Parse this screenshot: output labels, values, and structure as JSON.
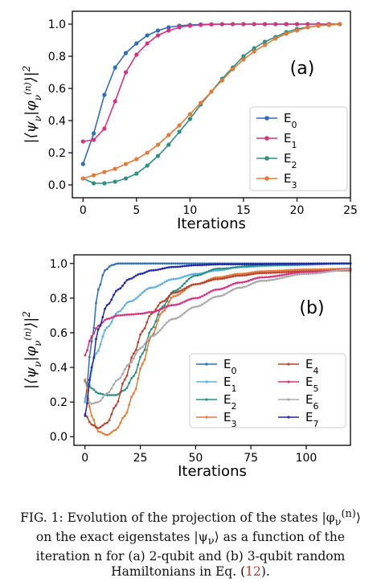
{
  "chart_data": [
    {
      "type": "line",
      "panel_label": "(a)",
      "xlabel": "Iterations",
      "ylabel": "|⟨ψ_ν|φ_ν^(n)⟩|²",
      "xlim": [
        -1,
        25
      ],
      "ylim": [
        -0.08,
        1.08
      ],
      "xticks": [
        0,
        5,
        10,
        15,
        20,
        25
      ],
      "yticks": [
        0.0,
        0.2,
        0.4,
        0.6,
        0.8,
        1.0
      ],
      "legend_position": "lower-right",
      "series": [
        {
          "name": "E0",
          "sub": "0",
          "color": "#2f6db5",
          "values": [
            0.13,
            0.32,
            0.56,
            0.73,
            0.82,
            0.88,
            0.93,
            0.96,
            0.98,
            0.99,
            0.995,
            0.998,
            0.999,
            1,
            1,
            1,
            1,
            1,
            1,
            1,
            1,
            1,
            1,
            1,
            1
          ]
        },
        {
          "name": "E1",
          "sub": "1",
          "color": "#d6337f",
          "values": [
            0.27,
            0.28,
            0.35,
            0.52,
            0.7,
            0.81,
            0.88,
            0.93,
            0.96,
            0.98,
            0.99,
            0.995,
            0.998,
            0.999,
            1,
            1,
            1,
            1,
            1,
            1,
            1,
            1,
            1,
            1,
            1
          ]
        },
        {
          "name": "E2",
          "sub": "2",
          "color": "#2e8f82",
          "values": [
            0.04,
            0.01,
            0.01,
            0.02,
            0.04,
            0.07,
            0.12,
            0.18,
            0.25,
            0.33,
            0.41,
            0.5,
            0.58,
            0.66,
            0.73,
            0.8,
            0.85,
            0.89,
            0.92,
            0.95,
            0.97,
            0.98,
            0.99,
            0.995,
            1.0
          ]
        },
        {
          "name": "E3",
          "sub": "3",
          "color": "#e07b39",
          "values": [
            0.04,
            0.06,
            0.08,
            0.1,
            0.13,
            0.16,
            0.2,
            0.25,
            0.31,
            0.37,
            0.44,
            0.51,
            0.58,
            0.65,
            0.72,
            0.78,
            0.83,
            0.87,
            0.91,
            0.94,
            0.96,
            0.98,
            0.99,
            0.995,
            1.0
          ]
        }
      ]
    },
    {
      "type": "line",
      "panel_label": "(b)",
      "xlabel": "Iterations",
      "ylabel": "|⟨ψ_ν|φ_ν^(n)⟩|²",
      "xlim": [
        -5,
        120
      ],
      "ylim": [
        -0.05,
        1.05
      ],
      "xticks": [
        0,
        25,
        50,
        75,
        100
      ],
      "yticks": [
        0.0,
        0.2,
        0.4,
        0.6,
        0.8,
        1.0
      ],
      "legend_position": "lower-right",
      "series": [
        {
          "name": "E0",
          "sub": "0",
          "color": "#2f6db5",
          "points": [
            [
              0,
              0.2
            ],
            [
              3,
              0.55
            ],
            [
              6,
              0.85
            ],
            [
              9,
              0.96
            ],
            [
              12,
              0.99
            ],
            [
              15,
              1.0
            ],
            [
              120,
              1.0
            ]
          ]
        },
        {
          "name": "E1",
          "sub": "1",
          "color": "#5fb0e0",
          "points": [
            [
              0,
              0.2
            ],
            [
              5,
              0.48
            ],
            [
              10,
              0.63
            ],
            [
              15,
              0.72
            ],
            [
              20,
              0.78
            ],
            [
              30,
              0.86
            ],
            [
              40,
              0.91
            ],
            [
              50,
              0.94
            ],
            [
              60,
              0.96
            ],
            [
              70,
              0.98
            ],
            [
              90,
              0.99
            ],
            [
              120,
              1.0
            ]
          ]
        },
        {
          "name": "E2",
          "sub": "2",
          "color": "#2e8f82",
          "points": [
            [
              0,
              0.32
            ],
            [
              3,
              0.28
            ],
            [
              6,
              0.25
            ],
            [
              10,
              0.24
            ],
            [
              14,
              0.24
            ],
            [
              18,
              0.27
            ],
            [
              22,
              0.35
            ],
            [
              26,
              0.48
            ],
            [
              30,
              0.62
            ],
            [
              35,
              0.75
            ],
            [
              40,
              0.84
            ],
            [
              50,
              0.93
            ],
            [
              60,
              0.97
            ],
            [
              80,
              0.99
            ],
            [
              120,
              1.0
            ]
          ]
        },
        {
          "name": "E3",
          "sub": "3",
          "color": "#e07b39",
          "points": [
            [
              0,
              0.33
            ],
            [
              3,
              0.12
            ],
            [
              6,
              0.03
            ],
            [
              10,
              0.01
            ],
            [
              14,
              0.04
            ],
            [
              18,
              0.12
            ],
            [
              22,
              0.25
            ],
            [
              26,
              0.42
            ],
            [
              30,
              0.58
            ],
            [
              35,
              0.72
            ],
            [
              40,
              0.81
            ],
            [
              50,
              0.88
            ],
            [
              60,
              0.92
            ],
            [
              70,
              0.94
            ],
            [
              80,
              0.955
            ],
            [
              100,
              0.965
            ],
            [
              120,
              0.97
            ]
          ]
        },
        {
          "name": "E4",
          "sub": "4",
          "color": "#b8442f",
          "points": [
            [
              0,
              0.13
            ],
            [
              3,
              0.07
            ],
            [
              6,
              0.05
            ],
            [
              10,
              0.08
            ],
            [
              14,
              0.18
            ],
            [
              18,
              0.33
            ],
            [
              22,
              0.48
            ],
            [
              26,
              0.61
            ],
            [
              30,
              0.71
            ],
            [
              35,
              0.78
            ],
            [
              40,
              0.83
            ],
            [
              50,
              0.88
            ],
            [
              60,
              0.91
            ],
            [
              70,
              0.93
            ],
            [
              80,
              0.945
            ],
            [
              100,
              0.955
            ],
            [
              120,
              0.96
            ]
          ]
        },
        {
          "name": "E5",
          "sub": "5",
          "color": "#d6337f",
          "points": [
            [
              0,
              0.47
            ],
            [
              3,
              0.58
            ],
            [
              6,
              0.64
            ],
            [
              10,
              0.68
            ],
            [
              15,
              0.7
            ],
            [
              20,
              0.705
            ],
            [
              25,
              0.71
            ],
            [
              30,
              0.72
            ],
            [
              40,
              0.76
            ],
            [
              50,
              0.8
            ],
            [
              60,
              0.85
            ],
            [
              70,
              0.89
            ],
            [
              80,
              0.92
            ],
            [
              100,
              0.95
            ],
            [
              120,
              0.965
            ]
          ]
        },
        {
          "name": "E6",
          "sub": "6",
          "color": "#aaaaaa",
          "points": [
            [
              0,
              0.22
            ],
            [
              3,
              0.19
            ],
            [
              6,
              0.2
            ],
            [
              10,
              0.25
            ],
            [
              15,
              0.33
            ],
            [
              20,
              0.42
            ],
            [
              25,
              0.51
            ],
            [
              30,
              0.58
            ],
            [
              40,
              0.68
            ],
            [
              50,
              0.75
            ],
            [
              60,
              0.81
            ],
            [
              70,
              0.86
            ],
            [
              80,
              0.9
            ],
            [
              100,
              0.94
            ],
            [
              120,
              0.965
            ]
          ]
        },
        {
          "name": "E7",
          "sub": "7",
          "color": "#1f2aa8",
          "points": [
            [
              0,
              0.12
            ],
            [
              3,
              0.4
            ],
            [
              6,
              0.62
            ],
            [
              10,
              0.76
            ],
            [
              15,
              0.85
            ],
            [
              20,
              0.91
            ],
            [
              25,
              0.94
            ],
            [
              30,
              0.96
            ],
            [
              40,
              0.98
            ],
            [
              50,
              0.99
            ],
            [
              60,
              0.995
            ],
            [
              120,
              1.0
            ]
          ]
        }
      ]
    }
  ],
  "caption": {
    "prefix": "FIG. 1: Evolution of the projection of the states |φ",
    "sub_nu": "ν",
    "sup_n": "(n)",
    "mid": "⟩ on the exact eigenstates |ψ",
    "mid2": "⟩ as a function of the iteration n for (a) 2-qubit and (b) 3-qubit random Hamiltonians in Eq. (",
    "ref": "12",
    "end": ")."
  }
}
